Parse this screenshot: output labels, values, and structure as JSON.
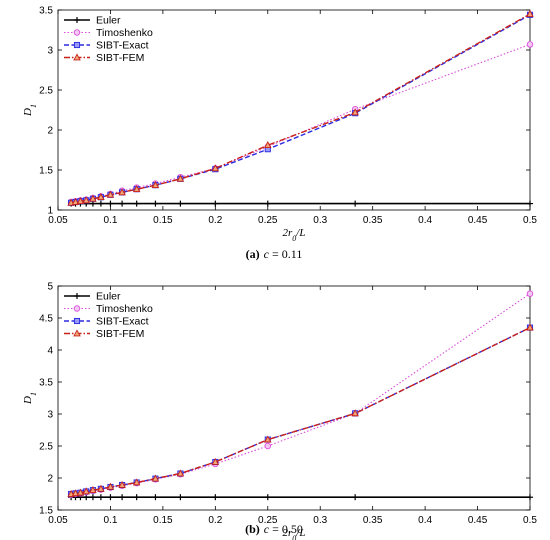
{
  "chart_data": [
    {
      "type": "line",
      "caption_letter": "(a)",
      "caption_var": "c",
      "caption_rest": " = 0.11",
      "xlabel_main": "2r",
      "xlabel_sub": "0",
      "xlabel_tail": "/L",
      "ylabel_main": "D",
      "ylabel_sub": "1",
      "xlim": [
        0.05,
        0.5
      ],
      "ylim": [
        1,
        3.5
      ],
      "xticks": [
        "0.05",
        "0.1",
        "0.15",
        "0.2",
        "0.25",
        "0.3",
        "0.35",
        "0.4",
        "0.45",
        "0.5"
      ],
      "yticks": [
        "1",
        "1.5",
        "2",
        "2.5",
        "3",
        "3.5"
      ],
      "grid": false,
      "legend_position": "top-left",
      "x": [
        0.0625,
        0.0667,
        0.0714,
        0.0769,
        0.0833,
        0.0909,
        0.1,
        0.1111,
        0.125,
        0.1429,
        0.1667,
        0.2,
        0.25,
        0.3333,
        0.5
      ],
      "series": [
        {
          "name": "Euler",
          "color": "#000000",
          "values": [
            1.08,
            1.08,
            1.08,
            1.08,
            1.08,
            1.08,
            1.08,
            1.08,
            1.08,
            1.08,
            1.08,
            1.08,
            1.08,
            1.08,
            1.08
          ]
        },
        {
          "name": "Timoshenko",
          "color": "#d94fd9",
          "values": [
            1.1,
            1.11,
            1.12,
            1.13,
            1.15,
            1.17,
            1.2,
            1.24,
            1.28,
            1.33,
            1.41,
            1.52,
            1.79,
            2.26,
            3.07
          ]
        },
        {
          "name": "SIBT-Exact",
          "color": "#2a2ae0",
          "values": [
            1.09,
            1.1,
            1.11,
            1.12,
            1.14,
            1.16,
            1.19,
            1.22,
            1.26,
            1.31,
            1.39,
            1.51,
            1.76,
            2.21,
            3.44
          ]
        },
        {
          "name": "SIBT-FEM",
          "color": "#c8211a",
          "values": [
            1.09,
            1.1,
            1.11,
            1.12,
            1.14,
            1.16,
            1.19,
            1.22,
            1.26,
            1.31,
            1.39,
            1.52,
            1.81,
            2.22,
            3.45
          ]
        }
      ]
    },
    {
      "type": "line",
      "caption_letter": "(b)",
      "caption_var": "c",
      "caption_rest": " = 0.50",
      "xlabel_main": "2r",
      "xlabel_sub": "0",
      "xlabel_tail": "/L",
      "ylabel_main": "D",
      "ylabel_sub": "1",
      "xlim": [
        0.05,
        0.5
      ],
      "ylim": [
        1.5,
        5
      ],
      "xticks": [
        "0.05",
        "0.1",
        "0.15",
        "0.2",
        "0.25",
        "0.3",
        "0.35",
        "0.4",
        "0.45",
        "0.5"
      ],
      "yticks": [
        "1.5",
        "2",
        "2.5",
        "3",
        "3.5",
        "4",
        "4.5",
        "5"
      ],
      "grid": false,
      "legend_position": "top-left",
      "x": [
        0.0625,
        0.0667,
        0.0714,
        0.0769,
        0.0833,
        0.0909,
        0.1,
        0.1111,
        0.125,
        0.1429,
        0.1667,
        0.2,
        0.25,
        0.3333,
        0.5
      ],
      "series": [
        {
          "name": "Euler",
          "color": "#000000",
          "values": [
            1.7,
            1.7,
            1.7,
            1.7,
            1.7,
            1.7,
            1.7,
            1.7,
            1.7,
            1.7,
            1.7,
            1.7,
            1.7,
            1.7,
            1.7
          ]
        },
        {
          "name": "Timoshenko",
          "color": "#d94fd9",
          "values": [
            1.74,
            1.75,
            1.76,
            1.78,
            1.8,
            1.82,
            1.85,
            1.88,
            1.92,
            1.98,
            2.06,
            2.22,
            2.5,
            3.01,
            4.88
          ]
        },
        {
          "name": "SIBT-Exact",
          "color": "#2a2ae0",
          "values": [
            1.75,
            1.76,
            1.77,
            1.79,
            1.81,
            1.83,
            1.86,
            1.89,
            1.93,
            1.99,
            2.07,
            2.25,
            2.6,
            3.01,
            4.35
          ]
        },
        {
          "name": "SIBT-FEM",
          "color": "#c8211a",
          "values": [
            1.75,
            1.76,
            1.77,
            1.79,
            1.81,
            1.83,
            1.86,
            1.89,
            1.93,
            1.99,
            2.07,
            2.25,
            2.6,
            3.01,
            4.35
          ]
        }
      ]
    }
  ]
}
